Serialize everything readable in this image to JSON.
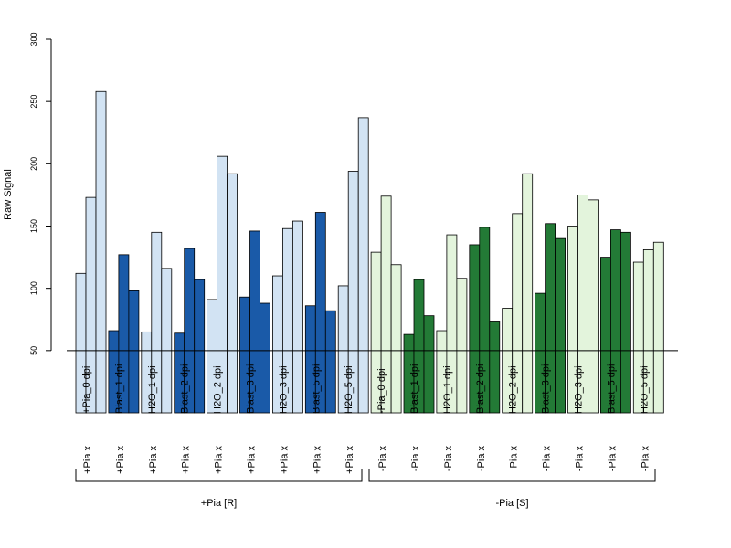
{
  "chart_data": {
    "type": "bar",
    "ylabel": "Raw Signal",
    "ylim": [
      0,
      300
    ],
    "yticks": [
      50,
      100,
      150,
      200,
      250,
      300
    ],
    "reference_line": 50,
    "categories": [
      {
        "label": "+Pia x +Pia_0 dpi",
        "group": "+Pia [R]",
        "color": "#d2e3f3",
        "values": [
          112,
          173,
          258
        ]
      },
      {
        "label": "+Pia x Blast_1 dpi",
        "group": "+Pia [R]",
        "color": "#1a5aa8",
        "values": [
          66,
          127,
          98
        ]
      },
      {
        "label": "+Pia x H2O_1 dpi",
        "group": "+Pia [R]",
        "color": "#d2e3f3",
        "values": [
          65,
          145,
          116
        ]
      },
      {
        "label": "+Pia x Blast_2 dpi",
        "group": "+Pia [R]",
        "color": "#1a5aa8",
        "values": [
          64,
          132,
          107
        ]
      },
      {
        "label": "+Pia x H2O_2 dpi",
        "group": "+Pia [R]",
        "color": "#d2e3f3",
        "values": [
          91,
          206,
          192
        ]
      },
      {
        "label": "+Pia x Blast_3 dpi",
        "group": "+Pia [R]",
        "color": "#1a5aa8",
        "values": [
          93,
          146,
          88
        ]
      },
      {
        "label": "+Pia x H2O_3 dpi",
        "group": "+Pia [R]",
        "color": "#d2e3f3",
        "values": [
          110,
          148,
          154
        ]
      },
      {
        "label": "+Pia x Blast_5 dpi",
        "group": "+Pia [R]",
        "color": "#1a5aa8",
        "values": [
          86,
          161,
          82
        ]
      },
      {
        "label": "+Pia x H2O_5 dpi",
        "group": "+Pia [R]",
        "color": "#d2e3f3",
        "values": [
          102,
          194,
          237
        ]
      },
      {
        "label": "-Pia x -Pia_0 dpi",
        "group": "-Pia [S]",
        "color": "#e3f4dc",
        "values": [
          129,
          174,
          119
        ]
      },
      {
        "label": "-Pia x Blast_1 dpi",
        "group": "-Pia [S]",
        "color": "#237a36",
        "values": [
          63,
          107,
          78
        ]
      },
      {
        "label": "-Pia x H2O_1 dpi",
        "group": "-Pia [S]",
        "color": "#e3f4dc",
        "values": [
          66,
          143,
          108
        ]
      },
      {
        "label": "-Pia x Blast_2 dpi",
        "group": "-Pia [S]",
        "color": "#237a36",
        "values": [
          135,
          149,
          73
        ]
      },
      {
        "label": "-Pia x H2O_2 dpi",
        "group": "-Pia [S]",
        "color": "#e3f4dc",
        "values": [
          84,
          160,
          192
        ]
      },
      {
        "label": "-Pia x Blast_3 dpi",
        "group": "-Pia [S]",
        "color": "#237a36",
        "values": [
          96,
          152,
          140
        ]
      },
      {
        "label": "-Pia x H2O_3 dpi",
        "group": "-Pia [S]",
        "color": "#e3f4dc",
        "values": [
          150,
          175,
          171
        ]
      },
      {
        "label": "-Pia x Blast_5 dpi",
        "group": "-Pia [S]",
        "color": "#237a36",
        "values": [
          125,
          147,
          145
        ]
      },
      {
        "label": "-Pia x H2O_5 dpi",
        "group": "-Pia [S]",
        "color": "#e3f4dc",
        "values": [
          121,
          131,
          137
        ]
      }
    ],
    "groups": [
      "+Pia [R]",
      "-Pia [S]"
    ],
    "grid": false,
    "legend": "none"
  }
}
